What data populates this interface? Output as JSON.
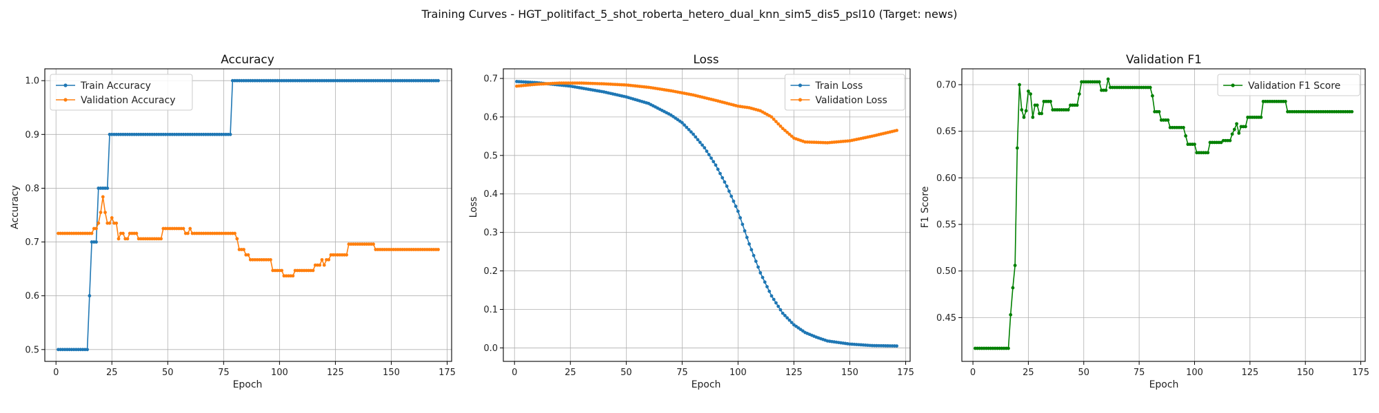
{
  "suptitle": "Training Curves - HGT_politifact_5_shot_roberta_hetero_dual_knn_sim5_dis5_psl10 (Target: news)",
  "colors": {
    "blue": "#1f77b4",
    "orange": "#ff7f0e",
    "green": "#008000",
    "grid": "#b0b0b0"
  },
  "chart_data": [
    {
      "type": "line",
      "title": "Accuracy",
      "xlabel": "Epoch",
      "ylabel": "Accuracy",
      "xlim": [
        -5,
        177
      ],
      "ylim": [
        0.478,
        1.022
      ],
      "xticks": [
        0,
        25,
        50,
        75,
        100,
        125,
        150,
        175
      ],
      "xtick_labels": [
        "0",
        "25",
        "50",
        "75",
        "100",
        "125",
        "150",
        "175"
      ],
      "yticks": [
        0.5,
        0.6,
        0.7,
        0.8,
        0.9,
        1.0
      ],
      "ytick_labels": [
        "0.5",
        "0.6",
        "0.7",
        "0.8",
        "0.9",
        "1.0"
      ],
      "grid": true,
      "legend_position": "upper-left",
      "series": [
        {
          "name": "Train Accuracy",
          "color": "blue",
          "steps": [
            [
              1,
              14,
              0.5
            ],
            [
              15,
              15,
              0.6
            ],
            [
              16,
              18,
              0.7
            ],
            [
              19,
              23,
              0.8
            ],
            [
              24,
              78,
              0.9
            ],
            [
              79,
              171,
              1.0
            ]
          ]
        },
        {
          "name": "Validation Accuracy",
          "color": "orange",
          "steps": [
            [
              1,
              16,
              0.716
            ],
            [
              17,
              18,
              0.725
            ],
            [
              19,
              19,
              0.735
            ],
            [
              20,
              20,
              0.755
            ],
            [
              21,
              21,
              0.784
            ],
            [
              22,
              22,
              0.755
            ],
            [
              23,
              24,
              0.735
            ],
            [
              25,
              25,
              0.745
            ],
            [
              26,
              27,
              0.735
            ],
            [
              28,
              28,
              0.706
            ],
            [
              29,
              30,
              0.716
            ],
            [
              31,
              32,
              0.706
            ],
            [
              33,
              36,
              0.716
            ],
            [
              37,
              47,
              0.706
            ],
            [
              48,
              57,
              0.725
            ],
            [
              58,
              59,
              0.716
            ],
            [
              60,
              60,
              0.725
            ],
            [
              61,
              80,
              0.716
            ],
            [
              81,
              81,
              0.706
            ],
            [
              82,
              84,
              0.686
            ],
            [
              85,
              86,
              0.676
            ],
            [
              87,
              96,
              0.667
            ],
            [
              97,
              101,
              0.647
            ],
            [
              102,
              106,
              0.637
            ],
            [
              107,
              115,
              0.647
            ],
            [
              116,
              118,
              0.657
            ],
            [
              119,
              119,
              0.667
            ],
            [
              120,
              120,
              0.657
            ],
            [
              121,
              122,
              0.667
            ],
            [
              123,
              130,
              0.676
            ],
            [
              131,
              142,
              0.696
            ],
            [
              143,
              171,
              0.686
            ]
          ]
        }
      ]
    },
    {
      "type": "line",
      "title": "Loss",
      "xlabel": "Epoch",
      "ylabel": "Loss",
      "xlim": [
        -5,
        177
      ],
      "ylim": [
        -0.035,
        0.725
      ],
      "xticks": [
        0,
        25,
        50,
        75,
        100,
        125,
        150,
        175
      ],
      "xtick_labels": [
        "0",
        "25",
        "50",
        "75",
        "100",
        "125",
        "150",
        "175"
      ],
      "yticks": [
        0.0,
        0.1,
        0.2,
        0.3,
        0.4,
        0.5,
        0.6,
        0.7
      ],
      "ytick_labels": [
        "0.0",
        "0.1",
        "0.2",
        "0.3",
        "0.4",
        "0.5",
        "0.6",
        "0.7"
      ],
      "grid": true,
      "legend_position": "upper-right",
      "series": [
        {
          "name": "Train Loss",
          "color": "blue",
          "keypoints": [
            [
              1,
              0.692
            ],
            [
              10,
              0.689
            ],
            [
              25,
              0.68
            ],
            [
              40,
              0.665
            ],
            [
              50,
              0.652
            ],
            [
              60,
              0.635
            ],
            [
              70,
              0.605
            ],
            [
              75,
              0.585
            ],
            [
              80,
              0.555
            ],
            [
              85,
              0.52
            ],
            [
              90,
              0.475
            ],
            [
              95,
              0.42
            ],
            [
              100,
              0.355
            ],
            [
              105,
              0.27
            ],
            [
              110,
              0.195
            ],
            [
              115,
              0.135
            ],
            [
              120,
              0.09
            ],
            [
              125,
              0.06
            ],
            [
              130,
              0.04
            ],
            [
              135,
              0.028
            ],
            [
              140,
              0.018
            ],
            [
              150,
              0.01
            ],
            [
              160,
              0.006
            ],
            [
              171,
              0.005
            ]
          ]
        },
        {
          "name": "Validation Loss",
          "color": "orange",
          "keypoints": [
            [
              1,
              0.68
            ],
            [
              10,
              0.685
            ],
            [
              20,
              0.688
            ],
            [
              30,
              0.688
            ],
            [
              40,
              0.686
            ],
            [
              50,
              0.683
            ],
            [
              60,
              0.677
            ],
            [
              70,
              0.668
            ],
            [
              80,
              0.657
            ],
            [
              90,
              0.643
            ],
            [
              100,
              0.628
            ],
            [
              105,
              0.624
            ],
            [
              110,
              0.616
            ],
            [
              115,
              0.6
            ],
            [
              120,
              0.57
            ],
            [
              125,
              0.545
            ],
            [
              130,
              0.535
            ],
            [
              140,
              0.533
            ],
            [
              150,
              0.538
            ],
            [
              160,
              0.55
            ],
            [
              171,
              0.565
            ]
          ]
        }
      ]
    },
    {
      "type": "line",
      "title": "Validation F1",
      "xlabel": "Epoch",
      "ylabel": "F1 Score",
      "xlim": [
        -5,
        177
      ],
      "ylim": [
        0.403,
        0.717
      ],
      "xticks": [
        0,
        25,
        50,
        75,
        100,
        125,
        150,
        175
      ],
      "xtick_labels": [
        "0",
        "25",
        "50",
        "75",
        "100",
        "125",
        "150",
        "175"
      ],
      "yticks": [
        0.45,
        0.5,
        0.55,
        0.6,
        0.65,
        0.7
      ],
      "ytick_labels": [
        "0.45",
        "0.50",
        "0.55",
        "0.60",
        "0.65",
        "0.70"
      ],
      "grid": true,
      "legend_position": "upper-right",
      "series": [
        {
          "name": "Validation F1 Score",
          "color": "green",
          "steps": [
            [
              1,
              16,
              0.417
            ],
            [
              17,
              17,
              0.453
            ],
            [
              18,
              18,
              0.482
            ],
            [
              19,
              19,
              0.506
            ],
            [
              20,
              20,
              0.632
            ],
            [
              21,
              21,
              0.7
            ],
            [
              22,
              22,
              0.673
            ],
            [
              23,
              23,
              0.665
            ],
            [
              24,
              24,
              0.672
            ],
            [
              25,
              25,
              0.693
            ],
            [
              26,
              26,
              0.69
            ],
            [
              27,
              27,
              0.665
            ],
            [
              28,
              29,
              0.678
            ],
            [
              30,
              31,
              0.669
            ],
            [
              32,
              35,
              0.682
            ],
            [
              36,
              43,
              0.673
            ],
            [
              44,
              47,
              0.678
            ],
            [
              48,
              48,
              0.69
            ],
            [
              49,
              57,
              0.703
            ],
            [
              58,
              60,
              0.694
            ],
            [
              61,
              61,
              0.706
            ],
            [
              62,
              80,
              0.697
            ],
            [
              81,
              81,
              0.688
            ],
            [
              82,
              84,
              0.671
            ],
            [
              85,
              88,
              0.662
            ],
            [
              89,
              95,
              0.654
            ],
            [
              96,
              96,
              0.645
            ],
            [
              97,
              100,
              0.636
            ],
            [
              101,
              106,
              0.627
            ],
            [
              107,
              112,
              0.638
            ],
            [
              113,
              116,
              0.64
            ],
            [
              117,
              117,
              0.647
            ],
            [
              118,
              118,
              0.652
            ],
            [
              119,
              119,
              0.658
            ],
            [
              120,
              120,
              0.648
            ],
            [
              121,
              123,
              0.655
            ],
            [
              124,
              130,
              0.665
            ],
            [
              131,
              141,
              0.682
            ],
            [
              142,
              171,
              0.671
            ]
          ]
        }
      ]
    }
  ]
}
